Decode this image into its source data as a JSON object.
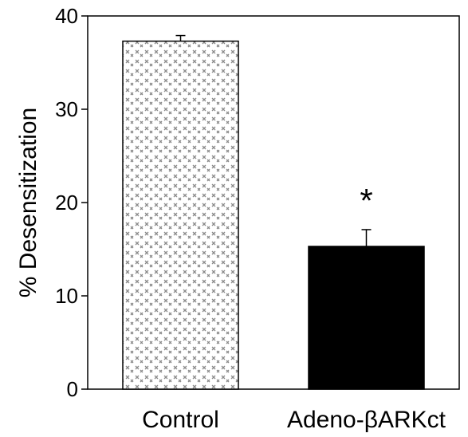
{
  "chart_data": {
    "type": "bar",
    "categories": [
      "Control",
      "Adeno-βARKct"
    ],
    "values": [
      37.3,
      15.3
    ],
    "error": [
      0.6,
      1.8
    ],
    "ylabel": "% Desensitization",
    "xlabel": "",
    "ylim": [
      0,
      40
    ],
    "yticks": [
      0,
      10,
      20,
      30,
      40
    ],
    "grid": false,
    "annotations": [
      {
        "category": "Adeno-βARKct",
        "text": "*"
      }
    ],
    "bar_styles": [
      "stippled",
      "solid"
    ]
  },
  "colors": {
    "axis": "#000000",
    "stipple_background": "#ffffff",
    "stipple_mark": "#8a8a8a",
    "solid_bar": "#000000"
  }
}
